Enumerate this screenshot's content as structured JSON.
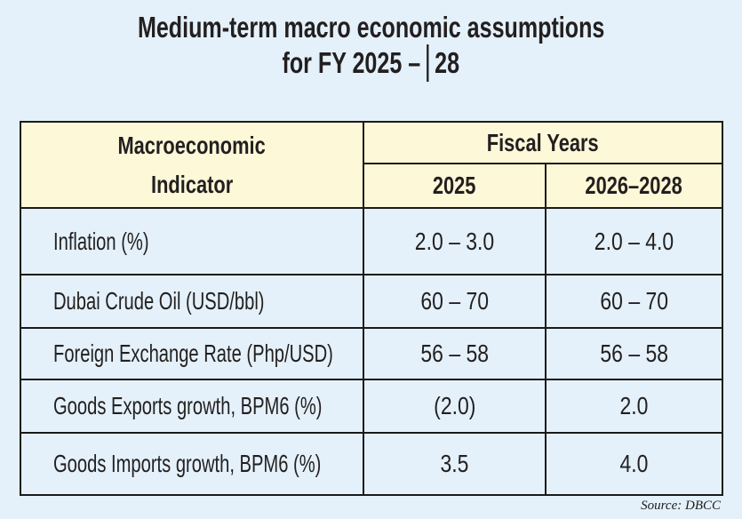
{
  "title": {
    "line1": "Medium-term macro economic assumptions",
    "line2_left": "for FY 2025 –",
    "line2_right": "28"
  },
  "chart_data": {
    "type": "table",
    "title": "Medium-term macro economic assumptions for FY 2025 – 28",
    "column_group_header": "Fiscal Years",
    "columns": [
      "Macroeconomic Indicator",
      "2025",
      "2026–2028"
    ],
    "header": {
      "indicator_line1": "Macroeconomic",
      "indicator_line2": "Indicator",
      "fiscal_years": "Fiscal Years",
      "fy1": "2025",
      "fy2": "2026–2028"
    },
    "rows": [
      {
        "indicator": "Inflation (%)",
        "fy2025": "2.0 – 3.0",
        "fy2026_2028": "2.0 – 4.0"
      },
      {
        "indicator": "Dubai Crude Oil (USD/bbl)",
        "fy2025": "60 – 70",
        "fy2026_2028": "60 – 70"
      },
      {
        "indicator": "Foreign Exchange Rate (Php/USD)",
        "fy2025": "56 – 58",
        "fy2026_2028": "56 – 58"
      },
      {
        "indicator": "Goods Exports growth, BPM6 (%)",
        "fy2025": "(2.0)",
        "fy2026_2028": "2.0"
      },
      {
        "indicator": "Goods Imports growth, BPM6 (%)",
        "fy2025": "3.5",
        "fy2026_2028": "4.0"
      }
    ],
    "source": "Source: DBCC"
  },
  "colors": {
    "page_background": "#e4f1fa",
    "header_background": "#fdf8d8",
    "border": "#1a1a1a",
    "text": "#231f20"
  }
}
